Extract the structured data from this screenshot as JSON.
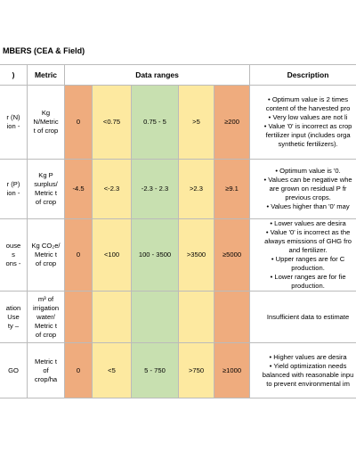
{
  "header": {
    "title": "MBERS (CEA & Field)"
  },
  "table": {
    "headers": [
      ")",
      "Metric",
      "Data ranges",
      "Description"
    ],
    "rows": [
      {
        "label": [
          "r (N)",
          "ion -"
        ],
        "metric": [
          "Kg",
          "N/Metric",
          "t of crop"
        ],
        "ranges": [
          "0",
          "<0.75",
          "0.75 - 5",
          ">5",
          "≥200"
        ],
        "description": [
          "• Optimum value is 2 times",
          "content of the harvested pro",
          "• Very low values are not li",
          "• Value '0' is incorrect as crop",
          "fertilizer input (includes orga",
          "synthetic fertilizers)."
        ]
      },
      {
        "label": [
          "r (P)",
          "ion -"
        ],
        "metric": [
          "Kg P",
          "surplus/",
          "Metric t",
          "of crop"
        ],
        "ranges": [
          "-4.5",
          "<-2.3",
          "-2.3 - 2.3",
          ">2.3",
          "≥9.1"
        ],
        "description": [
          "• Optimum value is '0.",
          "• Values can be negative whe",
          "are grown on residual P fr",
          "previous crops.",
          "• Values higher than '0' may"
        ]
      },
      {
        "label": [
          "ouse",
          "s",
          "ons -"
        ],
        "metric": [
          "Kg CO₂e/",
          "Metric t",
          "of crop"
        ],
        "ranges": [
          "0",
          "<100",
          "100 - 3500",
          ">3500",
          "≥5000"
        ],
        "description": [
          "• Lower values are desira",
          "• Value '0' is incorrect as the",
          "always emissions of GHG fro",
          "and fertilizer.",
          "• Upper ranges are for C",
          "production.",
          "• Lower ranges are for fie",
          "production."
        ]
      },
      {
        "label": [
          "ation",
          "Use",
          "ty –"
        ],
        "metric": [
          "m³ of",
          "irrigation",
          "water/",
          "Metric t",
          "of crop"
        ],
        "description": [
          "Insufficient data to estimate"
        ]
      },
      {
        "label": [
          "GO"
        ],
        "metric": [
          "Metric t",
          "of",
          "crop/ha"
        ],
        "ranges": [
          "0",
          "<5",
          "5 - 750",
          ">750",
          "≥1000"
        ],
        "description": [
          "• Higher values are desira",
          "• Yield optimization needs",
          "balanced with reasonable inpu",
          "to prevent environmental im"
        ]
      }
    ]
  }
}
